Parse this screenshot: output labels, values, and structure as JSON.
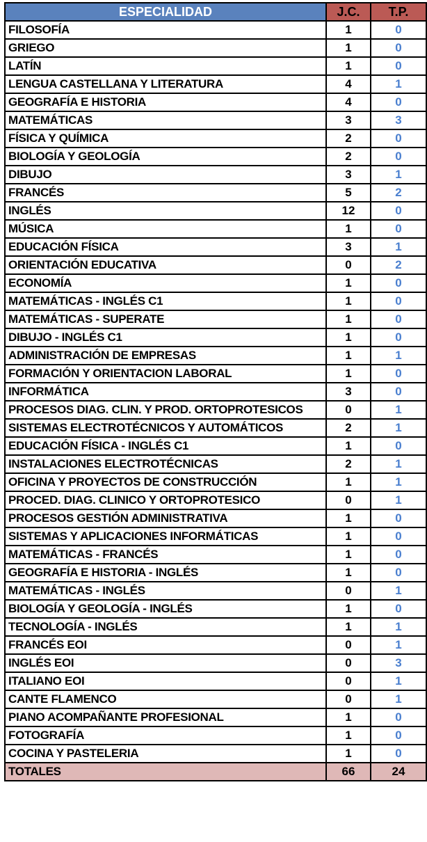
{
  "header": {
    "especialidad": "ESPECIALIDAD",
    "jc": "J.C.",
    "tp": "T.P."
  },
  "colors": {
    "header_blue": "#5a82bd",
    "header_red": "#bb5a55",
    "tp_blue": "#4a7fcf",
    "totals_bg": "#dfb8b7"
  },
  "rows": [
    {
      "name": "FILOSOFÍA",
      "jc": "1",
      "tp": "0"
    },
    {
      "name": "GRIEGO",
      "jc": "1",
      "tp": "0"
    },
    {
      "name": "LATÍN",
      "jc": "1",
      "tp": "0"
    },
    {
      "name": "LENGUA CASTELLANA Y LITERATURA",
      "jc": "4",
      "tp": "1"
    },
    {
      "name": "GEOGRAFÍA E HISTORIA",
      "jc": "4",
      "tp": "0"
    },
    {
      "name": "MATEMÁTICAS",
      "jc": "3",
      "tp": "3"
    },
    {
      "name": "FÍSICA Y QUÍMICA",
      "jc": "2",
      "tp": "0"
    },
    {
      "name": "BIOLOGÍA Y GEOLOGÍA",
      "jc": "2",
      "tp": "0"
    },
    {
      "name": "DIBUJO",
      "jc": "3",
      "tp": "1"
    },
    {
      "name": "FRANCÉS",
      "jc": "5",
      "tp": "2"
    },
    {
      "name": "INGLÉS",
      "jc": "12",
      "tp": "0"
    },
    {
      "name": "MÚSICA",
      "jc": "1",
      "tp": "0"
    },
    {
      "name": "EDUCACIÓN FÍSICA",
      "jc": "3",
      "tp": "1"
    },
    {
      "name": "ORIENTACIÓN EDUCATIVA",
      "jc": "0",
      "tp": "2"
    },
    {
      "name": "ECONOMÍA",
      "jc": "1",
      "tp": "0"
    },
    {
      "name": "MATEMÁTICAS - INGLÉS C1",
      "jc": "1",
      "tp": "0"
    },
    {
      "name": "MATEMÁTICAS - SUPERATE",
      "jc": "1",
      "tp": "0"
    },
    {
      "name": "DIBUJO - INGLÉS C1",
      "jc": "1",
      "tp": "0"
    },
    {
      "name": "ADMINISTRACIÓN DE EMPRESAS",
      "jc": "1",
      "tp": "1"
    },
    {
      "name": "FORMACIÓN Y ORIENTACION LABORAL",
      "jc": "1",
      "tp": "0"
    },
    {
      "name": "INFORMÁTICA",
      "jc": "3",
      "tp": "0"
    },
    {
      "name": "PROCESOS DIAG. CLIN. Y PROD. ORTOPROTESICOS",
      "jc": "0",
      "tp": "1"
    },
    {
      "name": "SISTEMAS ELECTROTÉCNICOS Y AUTOMÁTICOS",
      "jc": "2",
      "tp": "1"
    },
    {
      "name": "EDUCACIÓN FÍSICA - INGLÉS C1",
      "jc": "1",
      "tp": "0"
    },
    {
      "name": "INSTALACIONES ELECTROTÉCNICAS",
      "jc": "2",
      "tp": "1"
    },
    {
      "name": "OFICINA Y PROYECTOS DE CONSTRUCCIÓN",
      "jc": "1",
      "tp": "1"
    },
    {
      "name": "PROCED. DIAG. CLINICO Y ORTOPROTESICO",
      "jc": "0",
      "tp": "1"
    },
    {
      "name": "PROCESOS GESTIÓN ADMINISTRATIVA",
      "jc": "1",
      "tp": "0"
    },
    {
      "name": "SISTEMAS Y APLICACIONES INFORMÁTICAS",
      "jc": "1",
      "tp": "0"
    },
    {
      "name": "MATEMÁTICAS - FRANCÉS",
      "jc": "1",
      "tp": "0"
    },
    {
      "name": "GEOGRAFÍA E HISTORIA - INGLÉS",
      "jc": "1",
      "tp": "0"
    },
    {
      "name": "MATEMÁTICAS - INGLÉS",
      "jc": "0",
      "tp": "1"
    },
    {
      "name": "BIOLOGÍA Y GEOLOGÍA - INGLÉS",
      "jc": "1",
      "tp": "0"
    },
    {
      "name": "TECNOLOGÍA - INGLÉS",
      "jc": "1",
      "tp": "1"
    },
    {
      "name": "FRANCÉS EOI",
      "jc": "0",
      "tp": "1"
    },
    {
      "name": "INGLÉS EOI",
      "jc": "0",
      "tp": "3"
    },
    {
      "name": "ITALIANO EOI",
      "jc": "0",
      "tp": "1"
    },
    {
      "name": "CANTE FLAMENCO",
      "jc": "0",
      "tp": "1"
    },
    {
      "name": "PIANO ACOMPAÑANTE PROFESIONAL",
      "jc": "1",
      "tp": "0"
    },
    {
      "name": "FOTOGRAFÍA",
      "jc": "1",
      "tp": "0"
    },
    {
      "name": "COCINA Y PASTELERIA",
      "jc": "1",
      "tp": "0"
    }
  ],
  "totals": {
    "label": "TOTALES",
    "jc": "66",
    "tp": "24"
  }
}
